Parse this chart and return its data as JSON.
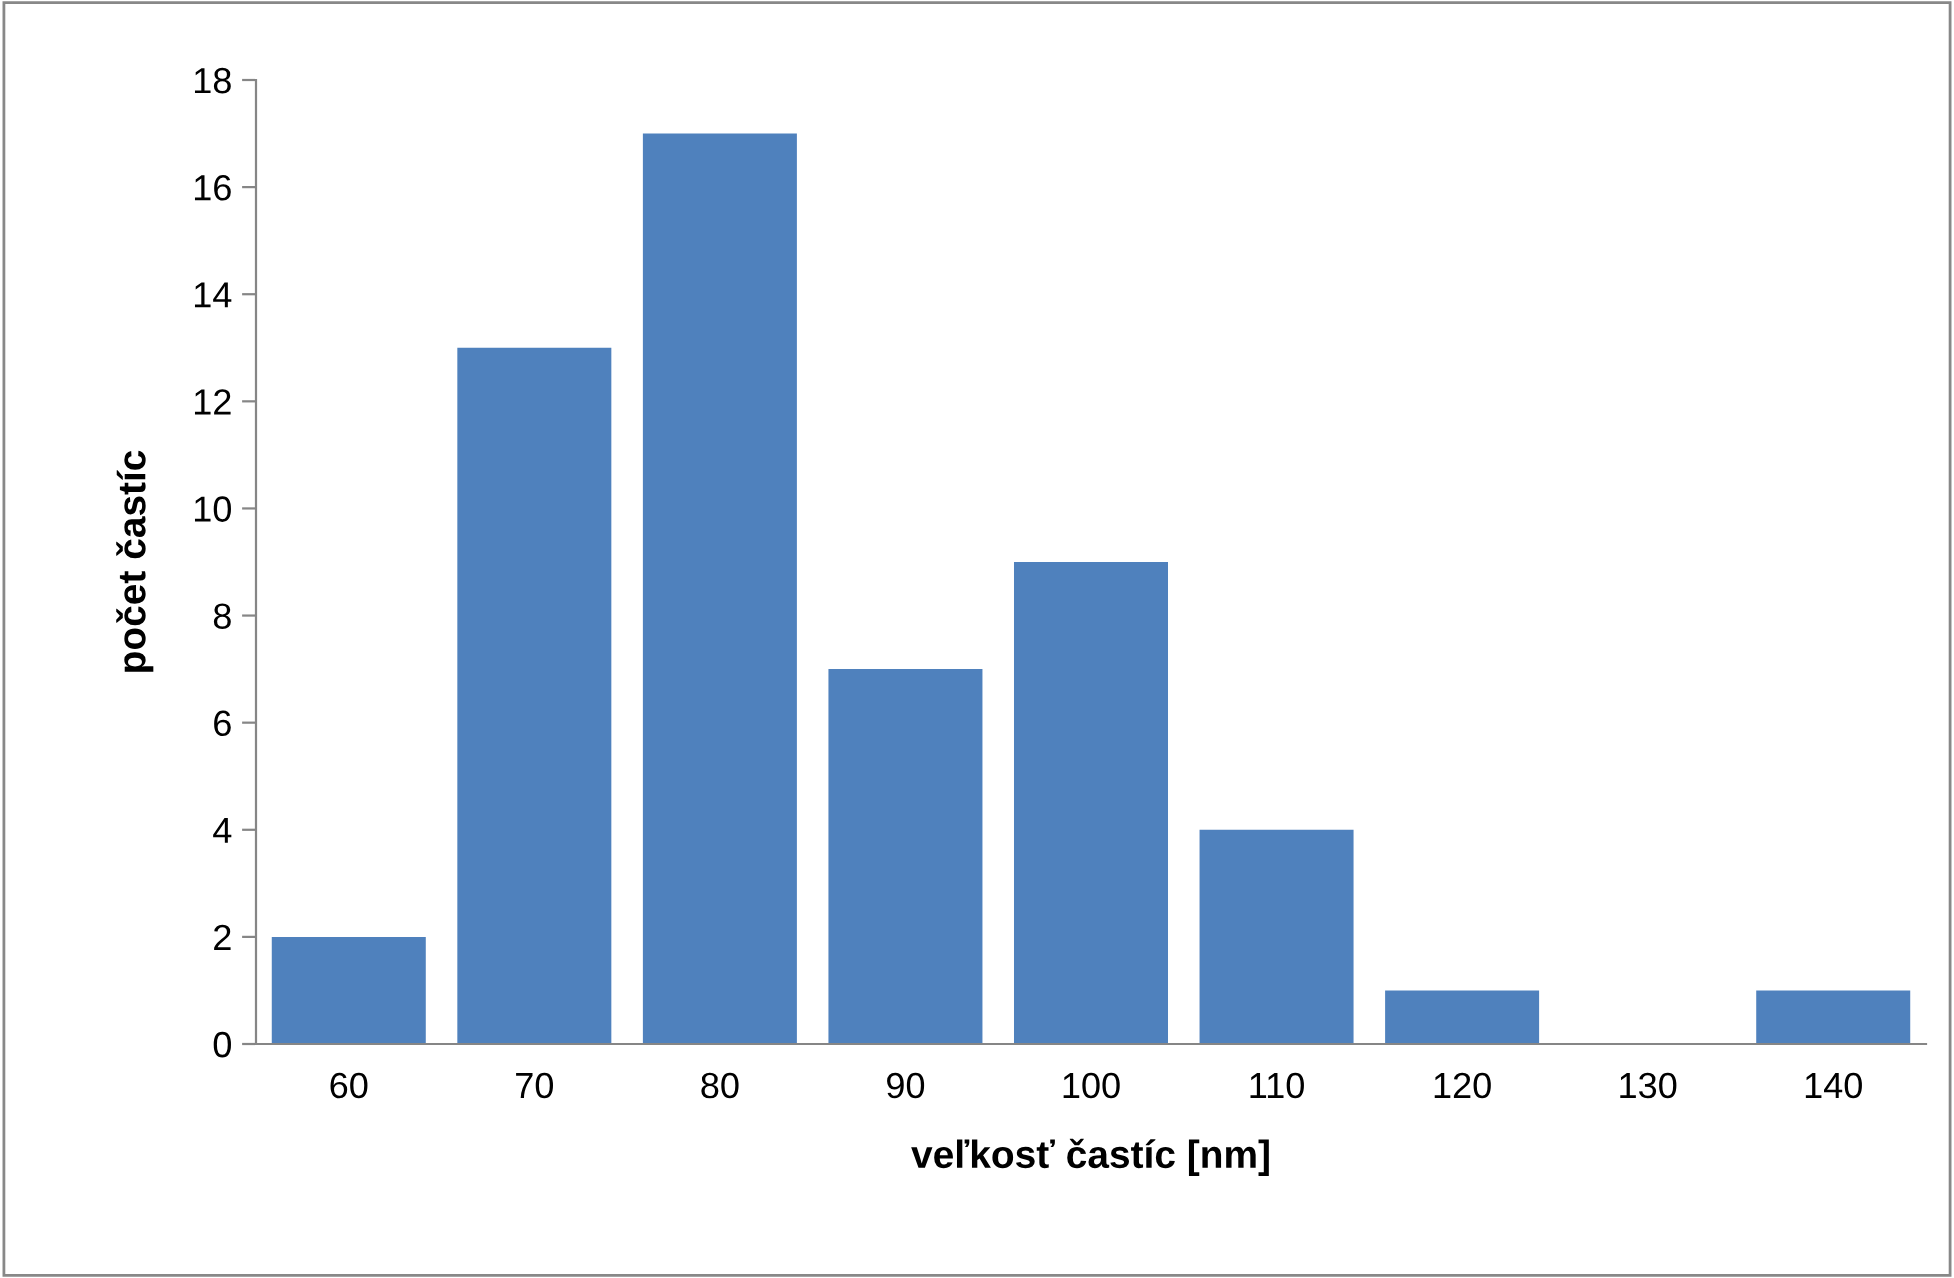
{
  "chart_data": {
    "type": "bar",
    "xlabel": "veľkosť častíc [nm]",
    "ylabel": "počet častíc",
    "categories": [
      "60",
      "70",
      "80",
      "90",
      "100",
      "110",
      "120",
      "130",
      "140"
    ],
    "values": [
      2,
      13,
      17,
      7,
      9,
      4,
      1,
      0,
      1
    ],
    "color": "#4f81bd",
    "ylim": [
      0,
      18
    ],
    "yticks": [
      0,
      2,
      4,
      6,
      8,
      10,
      12,
      14,
      16,
      18
    ],
    "grid": false
  }
}
